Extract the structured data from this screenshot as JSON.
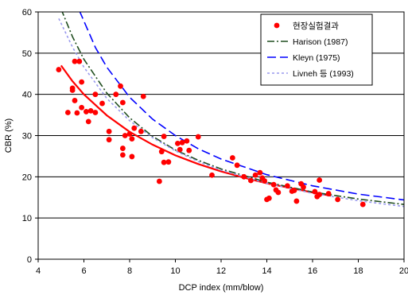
{
  "chart_data": {
    "type": "scatter",
    "xlabel": "DCP index (mm/blow)",
    "ylabel": "CBR (%)",
    "xlim": [
      4,
      20
    ],
    "ylim": [
      0,
      60
    ],
    "x_ticks": [
      "4",
      "6",
      "8",
      "10",
      "12",
      "14",
      "16",
      "18",
      "20"
    ],
    "y_ticks": [
      "0",
      "10",
      "20",
      "30",
      "40",
      "50",
      "60"
    ],
    "grid": "horizontal",
    "legend_position": "top-right",
    "series": [
      {
        "name": "현장실험결과",
        "kind": "scatter",
        "color": "#ff0000",
        "points": [
          [
            4.9,
            46.0
          ],
          [
            5.3,
            35.6
          ],
          [
            5.5,
            41.0
          ],
          [
            5.5,
            41.5
          ],
          [
            5.6,
            48.0
          ],
          [
            5.6,
            38.5
          ],
          [
            5.7,
            35.5
          ],
          [
            5.8,
            48.0
          ],
          [
            5.9,
            43.0
          ],
          [
            5.9,
            36.8
          ],
          [
            6.1,
            35.8
          ],
          [
            6.2,
            33.4
          ],
          [
            6.3,
            36.0
          ],
          [
            6.5,
            35.6
          ],
          [
            6.5,
            40.0
          ],
          [
            6.8,
            37.8
          ],
          [
            7.1,
            31.0
          ],
          [
            7.1,
            29.0
          ],
          [
            7.4,
            40.0
          ],
          [
            7.6,
            42.0
          ],
          [
            7.7,
            38.0
          ],
          [
            7.7,
            26.9
          ],
          [
            7.7,
            25.3
          ],
          [
            7.8,
            30.0
          ],
          [
            8.0,
            30.4
          ],
          [
            8.1,
            29.2
          ],
          [
            8.1,
            24.9
          ],
          [
            8.2,
            31.8
          ],
          [
            8.5,
            31.0
          ],
          [
            8.6,
            39.5
          ],
          [
            9.3,
            18.9
          ],
          [
            9.4,
            26.1
          ],
          [
            9.5,
            23.5
          ],
          [
            9.5,
            29.8
          ],
          [
            9.7,
            23.6
          ],
          [
            10.1,
            28.1
          ],
          [
            10.2,
            26.6
          ],
          [
            10.3,
            28.3
          ],
          [
            10.5,
            28.7
          ],
          [
            10.6,
            26.4
          ],
          [
            11.0,
            29.7
          ],
          [
            11.6,
            20.4
          ],
          [
            12.5,
            24.6
          ],
          [
            12.7,
            22.8
          ],
          [
            13.0,
            20.0
          ],
          [
            13.3,
            19.1
          ],
          [
            13.5,
            20.4
          ],
          [
            13.7,
            21.0
          ],
          [
            13.8,
            19.7
          ],
          [
            13.9,
            19.0
          ],
          [
            14.0,
            14.5
          ],
          [
            14.1,
            14.8
          ],
          [
            14.3,
            18.1
          ],
          [
            14.4,
            16.8
          ],
          [
            14.5,
            16.2
          ],
          [
            14.9,
            17.8
          ],
          [
            15.1,
            16.5
          ],
          [
            15.2,
            16.7
          ],
          [
            15.3,
            14.1
          ],
          [
            15.5,
            18.3
          ],
          [
            15.6,
            17.5
          ],
          [
            16.1,
            16.4
          ],
          [
            16.2,
            15.2
          ],
          [
            16.3,
            19.2
          ],
          [
            16.3,
            15.7
          ],
          [
            16.7,
            15.9
          ],
          [
            17.1,
            14.5
          ],
          [
            18.2,
            13.3
          ]
        ]
      },
      {
        "name": "",
        "kind": "fit",
        "color": "#ff0000",
        "x": [
          5.0,
          5.5,
          6.0,
          7.0,
          8.0,
          9.0,
          10.0,
          11.0,
          12.0,
          13.0,
          14.0,
          15.0,
          16.0,
          16.8
        ],
        "y": [
          47.0,
          43.2,
          40.0,
          34.9,
          30.9,
          27.8,
          25.2,
          23.1,
          21.3,
          19.8,
          18.4,
          17.3,
          16.2,
          15.4
        ]
      },
      {
        "name": "Harison (1987)",
        "kind": "line",
        "color": "#1f4d1f",
        "dash": "dashdot",
        "x": [
          5.0,
          5.5,
          6.0,
          7.0,
          8.0,
          9.0,
          10.0,
          11.0,
          12.0,
          14.0,
          16.0,
          18.0,
          20.0
        ],
        "y": [
          60.7,
          54.0,
          48.5,
          40.3,
          34.3,
          29.8,
          26.5,
          24.0,
          21.9,
          18.7,
          16.3,
          14.6,
          13.3
        ]
      },
      {
        "name": "Kleyn (1975)",
        "kind": "line",
        "color": "#0000ff",
        "dash": "longdash",
        "x": [
          5.8,
          6.5,
          7.0,
          8.0,
          9.0,
          10.0,
          11.0,
          12.0,
          14.0,
          16.0,
          18.0,
          20.0
        ],
        "y": [
          60.3,
          51.4,
          46.6,
          39.3,
          34.0,
          30.0,
          26.8,
          24.3,
          20.5,
          17.8,
          15.8,
          14.4
        ]
      },
      {
        "name": "Livneh 등 (1993)",
        "kind": "line",
        "color": "#9999ee",
        "dash": "shortdash",
        "x": [
          4.9,
          5.5,
          6.0,
          7.0,
          8.0,
          9.0,
          10.0,
          11.0,
          12.0,
          14.0,
          16.0,
          18.0,
          20.0
        ],
        "y": [
          58.4,
          51.5,
          46.6,
          39.0,
          33.6,
          29.5,
          26.3,
          23.7,
          21.6,
          18.4,
          16.0,
          14.2,
          12.8
        ]
      }
    ]
  }
}
